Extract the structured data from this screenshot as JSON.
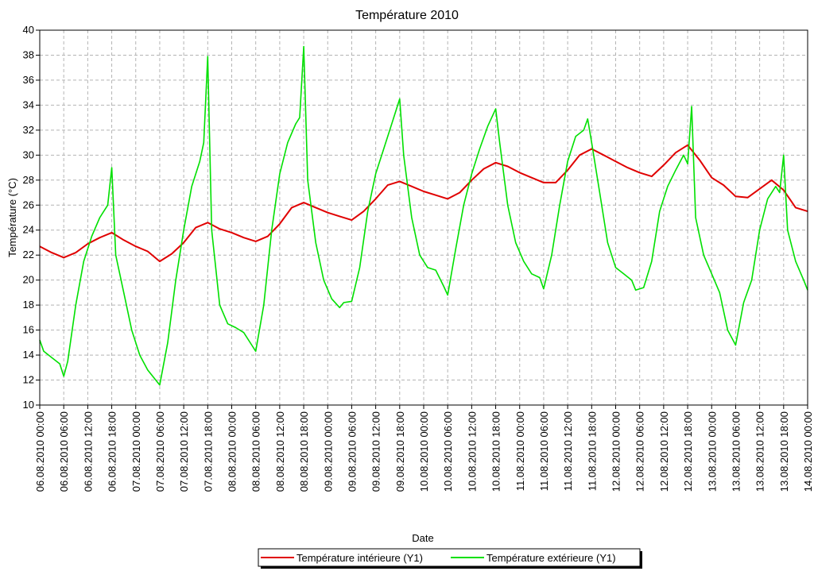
{
  "chart_data": {
    "type": "line",
    "title": "Température 2010",
    "xlabel": "Date",
    "ylabel": "Température (°C)",
    "ylim": [
      10,
      40
    ],
    "y_ticks": [
      "10",
      "12",
      "14",
      "16",
      "18",
      "20",
      "22",
      "24",
      "26",
      "28",
      "30",
      "32",
      "34",
      "36",
      "38",
      "40"
    ],
    "xlim": [
      "06.08.2010 00:00",
      "14.08.2010 00:00"
    ],
    "x_tick_interval_hours": 6,
    "x_ticks": [
      "06.08.2010 00:00",
      "06.08.2010 06:00",
      "06.08.2010 12:00",
      "06.08.2010 18:00",
      "07.08.2010 00:00",
      "07.08.2010 06:00",
      "07.08.2010 12:00",
      "07.08.2010 18:00",
      "08.08.2010 00:00",
      "08.08.2010 06:00",
      "08.08.2010 12:00",
      "08.08.2010 18:00",
      "09.08.2010 00:00",
      "09.08.2010 06:00",
      "09.08.2010 12:00",
      "09.08.2010 18:00",
      "10.08.2010 00:00",
      "10.08.2010 06:00",
      "10.08.2010 12:00",
      "10.08.2010 18:00",
      "11.08.2010 00:00",
      "11.08.2010 06:00",
      "11.08.2010 12:00",
      "11.08.2010 18:00",
      "12.08.2010 00:00",
      "12.08.2010 06:00",
      "12.08.2010 12:00",
      "12.08.2010 18:00",
      "13.08.2010 00:00",
      "13.08.2010 06:00",
      "13.08.2010 12:00",
      "13.08.2010 18:00",
      "14.08.2010 00:00"
    ],
    "grid": true,
    "legend_position": "bottom-center",
    "series": [
      {
        "name": "Température intérieure (Y1)",
        "color": "#e00000",
        "points": [
          [
            "06.08.2010 00:00",
            22.7
          ],
          [
            "06.08.2010 03:00",
            22.2
          ],
          [
            "06.08.2010 06:00",
            21.8
          ],
          [
            "06.08.2010 09:00",
            22.2
          ],
          [
            "06.08.2010 12:00",
            22.9
          ],
          [
            "06.08.2010 15:00",
            23.4
          ],
          [
            "06.08.2010 18:00",
            23.8
          ],
          [
            "06.08.2010 21:00",
            23.2
          ],
          [
            "07.08.2010 00:00",
            22.7
          ],
          [
            "07.08.2010 03:00",
            22.3
          ],
          [
            "07.08.2010 06:00",
            21.5
          ],
          [
            "07.08.2010 09:00",
            22.1
          ],
          [
            "07.08.2010 12:00",
            23.0
          ],
          [
            "07.08.2010 15:00",
            24.2
          ],
          [
            "07.08.2010 18:00",
            24.6
          ],
          [
            "07.08.2010 21:00",
            24.1
          ],
          [
            "08.08.2010 00:00",
            23.8
          ],
          [
            "08.08.2010 03:00",
            23.4
          ],
          [
            "08.08.2010 06:00",
            23.1
          ],
          [
            "08.08.2010 09:00",
            23.5
          ],
          [
            "08.08.2010 12:00",
            24.5
          ],
          [
            "08.08.2010 15:00",
            25.8
          ],
          [
            "08.08.2010 18:00",
            26.2
          ],
          [
            "08.08.2010 21:00",
            25.8
          ],
          [
            "09.08.2010 00:00",
            25.4
          ],
          [
            "09.08.2010 03:00",
            25.1
          ],
          [
            "09.08.2010 06:00",
            24.8
          ],
          [
            "09.08.2010 09:00",
            25.5
          ],
          [
            "09.08.2010 12:00",
            26.5
          ],
          [
            "09.08.2010 15:00",
            27.6
          ],
          [
            "09.08.2010 18:00",
            27.9
          ],
          [
            "09.08.2010 21:00",
            27.5
          ],
          [
            "10.08.2010 00:00",
            27.1
          ],
          [
            "10.08.2010 03:00",
            26.8
          ],
          [
            "10.08.2010 06:00",
            26.5
          ],
          [
            "10.08.2010 09:00",
            27.0
          ],
          [
            "10.08.2010 12:00",
            28.0
          ],
          [
            "10.08.2010 15:00",
            28.9
          ],
          [
            "10.08.2010 18:00",
            29.4
          ],
          [
            "10.08.2010 21:00",
            29.1
          ],
          [
            "11.08.2010 00:00",
            28.6
          ],
          [
            "11.08.2010 03:00",
            28.2
          ],
          [
            "11.08.2010 06:00",
            27.8
          ],
          [
            "11.08.2010 09:00",
            27.8
          ],
          [
            "11.08.2010 12:00",
            28.8
          ],
          [
            "11.08.2010 15:00",
            30.0
          ],
          [
            "11.08.2010 18:00",
            30.5
          ],
          [
            "11.08.2010 21:00",
            30.0
          ],
          [
            "12.08.2010 00:00",
            29.5
          ],
          [
            "12.08.2010 03:00",
            29.0
          ],
          [
            "12.08.2010 06:00",
            28.6
          ],
          [
            "12.08.2010 09:00",
            28.3
          ],
          [
            "12.08.2010 12:00",
            29.2
          ],
          [
            "12.08.2010 15:00",
            30.2
          ],
          [
            "12.08.2010 18:00",
            30.8
          ],
          [
            "12.08.2010 21:00",
            29.6
          ],
          [
            "13.08.2010 00:00",
            28.2
          ],
          [
            "13.08.2010 03:00",
            27.6
          ],
          [
            "13.08.2010 06:00",
            26.7
          ],
          [
            "13.08.2010 09:00",
            26.6
          ],
          [
            "13.08.2010 12:00",
            27.3
          ],
          [
            "13.08.2010 15:00",
            28.0
          ],
          [
            "13.08.2010 18:00",
            27.2
          ],
          [
            "13.08.2010 21:00",
            25.8
          ],
          [
            "14.08.2010 00:00",
            25.5
          ]
        ]
      },
      {
        "name": "Température extérieure (Y1)",
        "color": "#00e000",
        "points": [
          [
            "06.08.2010 00:00",
            15.2
          ],
          [
            "06.08.2010 01:00",
            14.3
          ],
          [
            "06.08.2010 03:00",
            13.8
          ],
          [
            "06.08.2010 05:00",
            13.3
          ],
          [
            "06.08.2010 06:00",
            12.3
          ],
          [
            "06.08.2010 07:00",
            13.5
          ],
          [
            "06.08.2010 09:00",
            18.0
          ],
          [
            "06.08.2010 11:00",
            21.5
          ],
          [
            "06.08.2010 13:00",
            23.5
          ],
          [
            "06.08.2010 15:00",
            25.0
          ],
          [
            "06.08.2010 17:00",
            26.0
          ],
          [
            "06.08.2010 18:00",
            29.0
          ],
          [
            "06.08.2010 19:00",
            22.0
          ],
          [
            "06.08.2010 21:00",
            19.0
          ],
          [
            "06.08.2010 23:00",
            16.0
          ],
          [
            "07.08.2010 01:00",
            14.0
          ],
          [
            "07.08.2010 03:00",
            12.8
          ],
          [
            "07.08.2010 05:00",
            12.0
          ],
          [
            "07.08.2010 06:00",
            11.6
          ],
          [
            "07.08.2010 08:00",
            15.0
          ],
          [
            "07.08.2010 10:00",
            20.0
          ],
          [
            "07.08.2010 12:00",
            24.0
          ],
          [
            "07.08.2010 14:00",
            27.5
          ],
          [
            "07.08.2010 16:00",
            29.5
          ],
          [
            "07.08.2010 17:00",
            31.0
          ],
          [
            "07.08.2010 18:00",
            37.9
          ],
          [
            "07.08.2010 19:00",
            24.0
          ],
          [
            "07.08.2010 21:00",
            18.0
          ],
          [
            "07.08.2010 23:00",
            16.5
          ],
          [
            "08.08.2010 01:00",
            16.2
          ],
          [
            "08.08.2010 03:00",
            15.8
          ],
          [
            "08.08.2010 05:00",
            14.8
          ],
          [
            "08.08.2010 06:00",
            14.3
          ],
          [
            "08.08.2010 08:00",
            18.0
          ],
          [
            "08.08.2010 10:00",
            24.0
          ],
          [
            "08.08.2010 12:00",
            28.5
          ],
          [
            "08.08.2010 14:00",
            31.0
          ],
          [
            "08.08.2010 16:00",
            32.5
          ],
          [
            "08.08.2010 17:00",
            33.0
          ],
          [
            "08.08.2010 18:00",
            38.7
          ],
          [
            "08.08.2010 19:00",
            28.0
          ],
          [
            "08.08.2010 21:00",
            23.0
          ],
          [
            "08.08.2010 23:00",
            20.0
          ],
          [
            "09.08.2010 01:00",
            18.5
          ],
          [
            "09.08.2010 03:00",
            17.8
          ],
          [
            "09.08.2010 04:00",
            18.2
          ],
          [
            "09.08.2010 06:00",
            18.3
          ],
          [
            "09.08.2010 08:00",
            21.0
          ],
          [
            "09.08.2010 10:00",
            25.5
          ],
          [
            "09.08.2010 12:00",
            28.5
          ],
          [
            "09.08.2010 14:00",
            30.5
          ],
          [
            "09.08.2010 16:00",
            32.5
          ],
          [
            "09.08.2010 17:00",
            33.5
          ],
          [
            "09.08.2010 18:00",
            34.5
          ],
          [
            "09.08.2010 19:00",
            30.0
          ],
          [
            "09.08.2010 21:00",
            25.0
          ],
          [
            "09.08.2010 23:00",
            22.0
          ],
          [
            "10.08.2010 01:00",
            21.0
          ],
          [
            "10.08.2010 03:00",
            20.8
          ],
          [
            "10.08.2010 05:00",
            19.5
          ],
          [
            "10.08.2010 06:00",
            18.8
          ],
          [
            "10.08.2010 08:00",
            22.5
          ],
          [
            "10.08.2010 10:00",
            26.0
          ],
          [
            "10.08.2010 12:00",
            28.5
          ],
          [
            "10.08.2010 14:00",
            30.5
          ],
          [
            "10.08.2010 16:00",
            32.3
          ],
          [
            "10.08.2010 18:00",
            33.7
          ],
          [
            "10.08.2010 19:00",
            31.0
          ],
          [
            "10.08.2010 21:00",
            26.0
          ],
          [
            "10.08.2010 23:00",
            23.0
          ],
          [
            "11.08.2010 01:00",
            21.5
          ],
          [
            "11.08.2010 03:00",
            20.5
          ],
          [
            "11.08.2010 05:00",
            20.2
          ],
          [
            "11.08.2010 06:00",
            19.3
          ],
          [
            "11.08.2010 08:00",
            22.0
          ],
          [
            "11.08.2010 10:00",
            26.0
          ],
          [
            "11.08.2010 12:00",
            29.5
          ],
          [
            "11.08.2010 14:00",
            31.5
          ],
          [
            "11.08.2010 16:00",
            32.0
          ],
          [
            "11.08.2010 17:00",
            32.9
          ],
          [
            "11.08.2010 18:00",
            31.0
          ],
          [
            "11.08.2010 20:00",
            27.0
          ],
          [
            "11.08.2010 22:00",
            23.0
          ],
          [
            "12.08.2010 00:00",
            21.0
          ],
          [
            "12.08.2010 02:00",
            20.5
          ],
          [
            "12.08.2010 04:00",
            20.0
          ],
          [
            "12.08.2010 05:00",
            19.2
          ],
          [
            "12.08.2010 07:00",
            19.4
          ],
          [
            "12.08.2010 09:00",
            21.5
          ],
          [
            "12.08.2010 11:00",
            25.5
          ],
          [
            "12.08.2010 13:00",
            27.5
          ],
          [
            "12.08.2010 15:00",
            28.8
          ],
          [
            "12.08.2010 17:00",
            30.0
          ],
          [
            "12.08.2010 18:00",
            29.3
          ],
          [
            "12.08.2010 19:00",
            33.9
          ],
          [
            "12.08.2010 20:00",
            25.0
          ],
          [
            "12.08.2010 22:00",
            22.0
          ],
          [
            "13.08.2010 00:00",
            20.5
          ],
          [
            "13.08.2010 02:00",
            19.0
          ],
          [
            "13.08.2010 04:00",
            16.0
          ],
          [
            "13.08.2010 06:00",
            14.8
          ],
          [
            "13.08.2010 08:00",
            18.2
          ],
          [
            "13.08.2010 10:00",
            20.0
          ],
          [
            "13.08.2010 12:00",
            24.0
          ],
          [
            "13.08.2010 14:00",
            26.5
          ],
          [
            "13.08.2010 16:00",
            27.5
          ],
          [
            "13.08.2010 17:00",
            27.0
          ],
          [
            "13.08.2010 18:00",
            30.0
          ],
          [
            "13.08.2010 19:00",
            24.0
          ],
          [
            "13.08.2010 21:00",
            21.5
          ],
          [
            "13.08.2010 23:00",
            20.0
          ],
          [
            "14.08.2010 00:00",
            19.2
          ]
        ]
      }
    ]
  }
}
